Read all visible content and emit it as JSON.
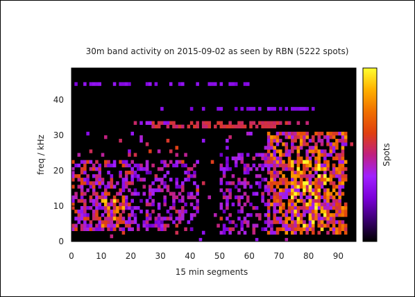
{
  "chart_data": {
    "type": "heatmap",
    "title": "30m band activity on 2015-09-02 as seen by RBN (5222 spots)",
    "xlabel": "15 min segments",
    "ylabel": "freq / kHz",
    "colorbar_label": "Spots",
    "xlim": [
      0,
      96
    ],
    "ylim": [
      0,
      49
    ],
    "xticks": [
      0,
      10,
      20,
      30,
      40,
      50,
      60,
      70,
      80,
      90
    ],
    "yticks": [
      0,
      10,
      20,
      30,
      40
    ],
    "colormap": [
      "#000000",
      "#3a0070",
      "#7a00d8",
      "#a020ff",
      "#c02080",
      "#e04010",
      "#f07000",
      "#ffb000",
      "#ffff30"
    ],
    "grid": false,
    "bands": [
      {
        "x": [
          1,
          60
        ],
        "y": 44,
        "level": 0.3,
        "density": 0.45
      },
      {
        "x": [
          20,
          79
        ],
        "y": 33,
        "level": 0.55,
        "density": 0.55
      },
      {
        "x": [
          19,
          32
        ],
        "y": 33,
        "level": 0.35,
        "density": 0.6
      },
      {
        "x": [
          27,
          68
        ],
        "y": 32,
        "level": 0.55,
        "density": 0.8
      },
      {
        "x": [
          27,
          82
        ],
        "y": 37,
        "level": 0.3,
        "density": 0.4
      }
    ],
    "clusters": [
      {
        "x": [
          0,
          20
        ],
        "y": [
          3,
          22
        ],
        "intensity": 0.55,
        "density": 0.55
      },
      {
        "x": [
          10,
          17
        ],
        "y": [
          3,
          13
        ],
        "intensity": 0.8,
        "density": 0.5
      },
      {
        "x": [
          20,
          42
        ],
        "y": [
          3,
          22
        ],
        "intensity": 0.45,
        "density": 0.35
      },
      {
        "x": [
          50,
          68
        ],
        "y": [
          2,
          24
        ],
        "intensity": 0.45,
        "density": 0.35
      },
      {
        "x": [
          66,
          92
        ],
        "y": [
          2,
          30
        ],
        "intensity": 0.7,
        "density": 0.65
      },
      {
        "x": [
          74,
          86
        ],
        "y": [
          3,
          22
        ],
        "intensity": 0.85,
        "density": 0.5
      }
    ]
  }
}
